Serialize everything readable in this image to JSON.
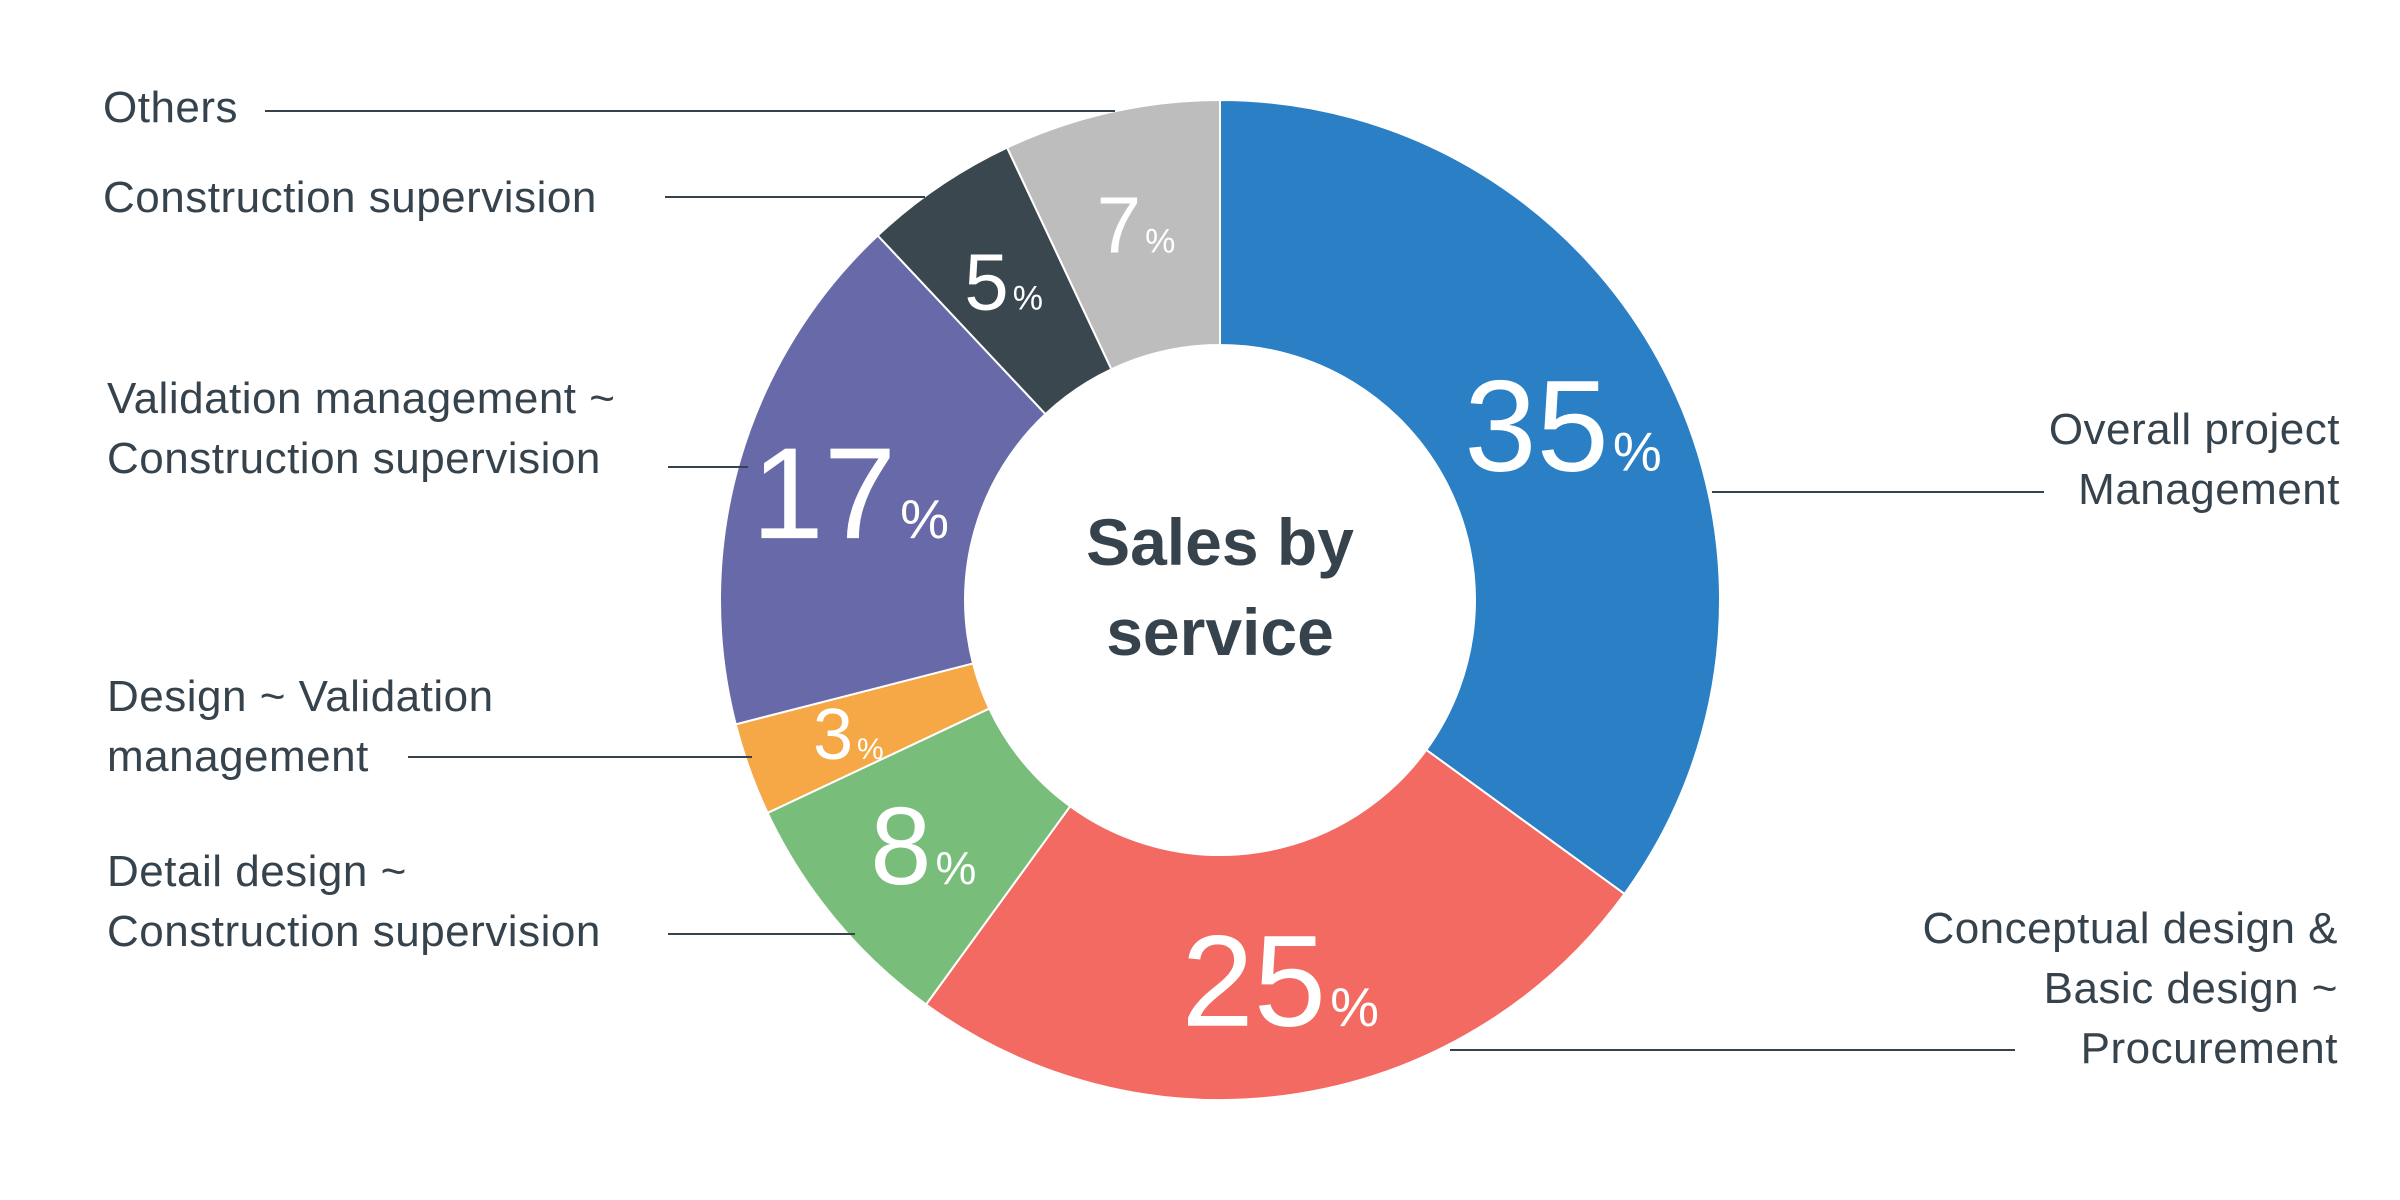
{
  "chart_data": {
    "type": "pie",
    "title": "Sales by service",
    "unit": "%",
    "slices": [
      {
        "label": "Overall project Management",
        "label_lines": [
          "Overall project",
          "Management"
        ],
        "value": 35,
        "color": "#2a7fc5"
      },
      {
        "label": "Conceptual design & Basic design ~ Procurement",
        "label_lines": [
          "Conceptual design &",
          "Basic design ~",
          "Procurement"
        ],
        "value": 25,
        "color": "#f26a61"
      },
      {
        "label": "Detail design ~ Construction supervision",
        "label_lines": [
          "Detail design ~",
          "Construction supervision"
        ],
        "value": 8,
        "color": "#79bd7b"
      },
      {
        "label": "Design ~ Validation management",
        "label_lines": [
          "Design ~ Validation",
          "management"
        ],
        "value": 3,
        "color": "#f5a845"
      },
      {
        "label": "Validation management ~ Construction supervision",
        "label_lines": [
          "Validation management ~",
          "Construction supervision"
        ],
        "value": 17,
        "color": "#6869a8"
      },
      {
        "label": "Construction supervision",
        "label_lines": [
          "Construction supervision"
        ],
        "value": 5,
        "color": "#3a474e"
      },
      {
        "label": "Others",
        "label_lines": [
          "Others"
        ],
        "value": 7,
        "color": "#bdbdbd"
      }
    ]
  }
}
